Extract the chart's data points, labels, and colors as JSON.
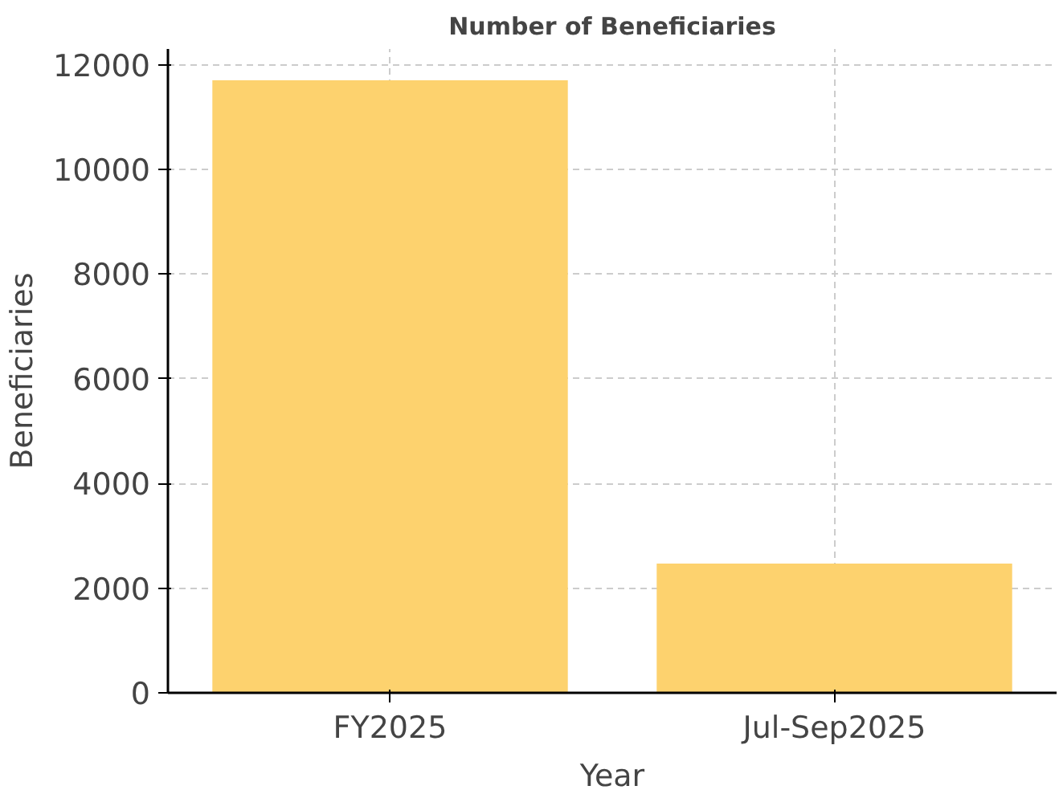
{
  "chart_data": {
    "type": "bar",
    "title": "Number of Beneficiaries",
    "xlabel": "Year",
    "ylabel": "Beneficiaries",
    "categories": [
      "FY2025",
      "Jul-Sep2025"
    ],
    "values": [
      11700,
      2470
    ],
    "color": "#fdd26e",
    "ylim": [
      0,
      12300
    ],
    "yticks": [
      0,
      2000,
      4000,
      6000,
      8000,
      10000,
      12000
    ],
    "grid": true
  }
}
